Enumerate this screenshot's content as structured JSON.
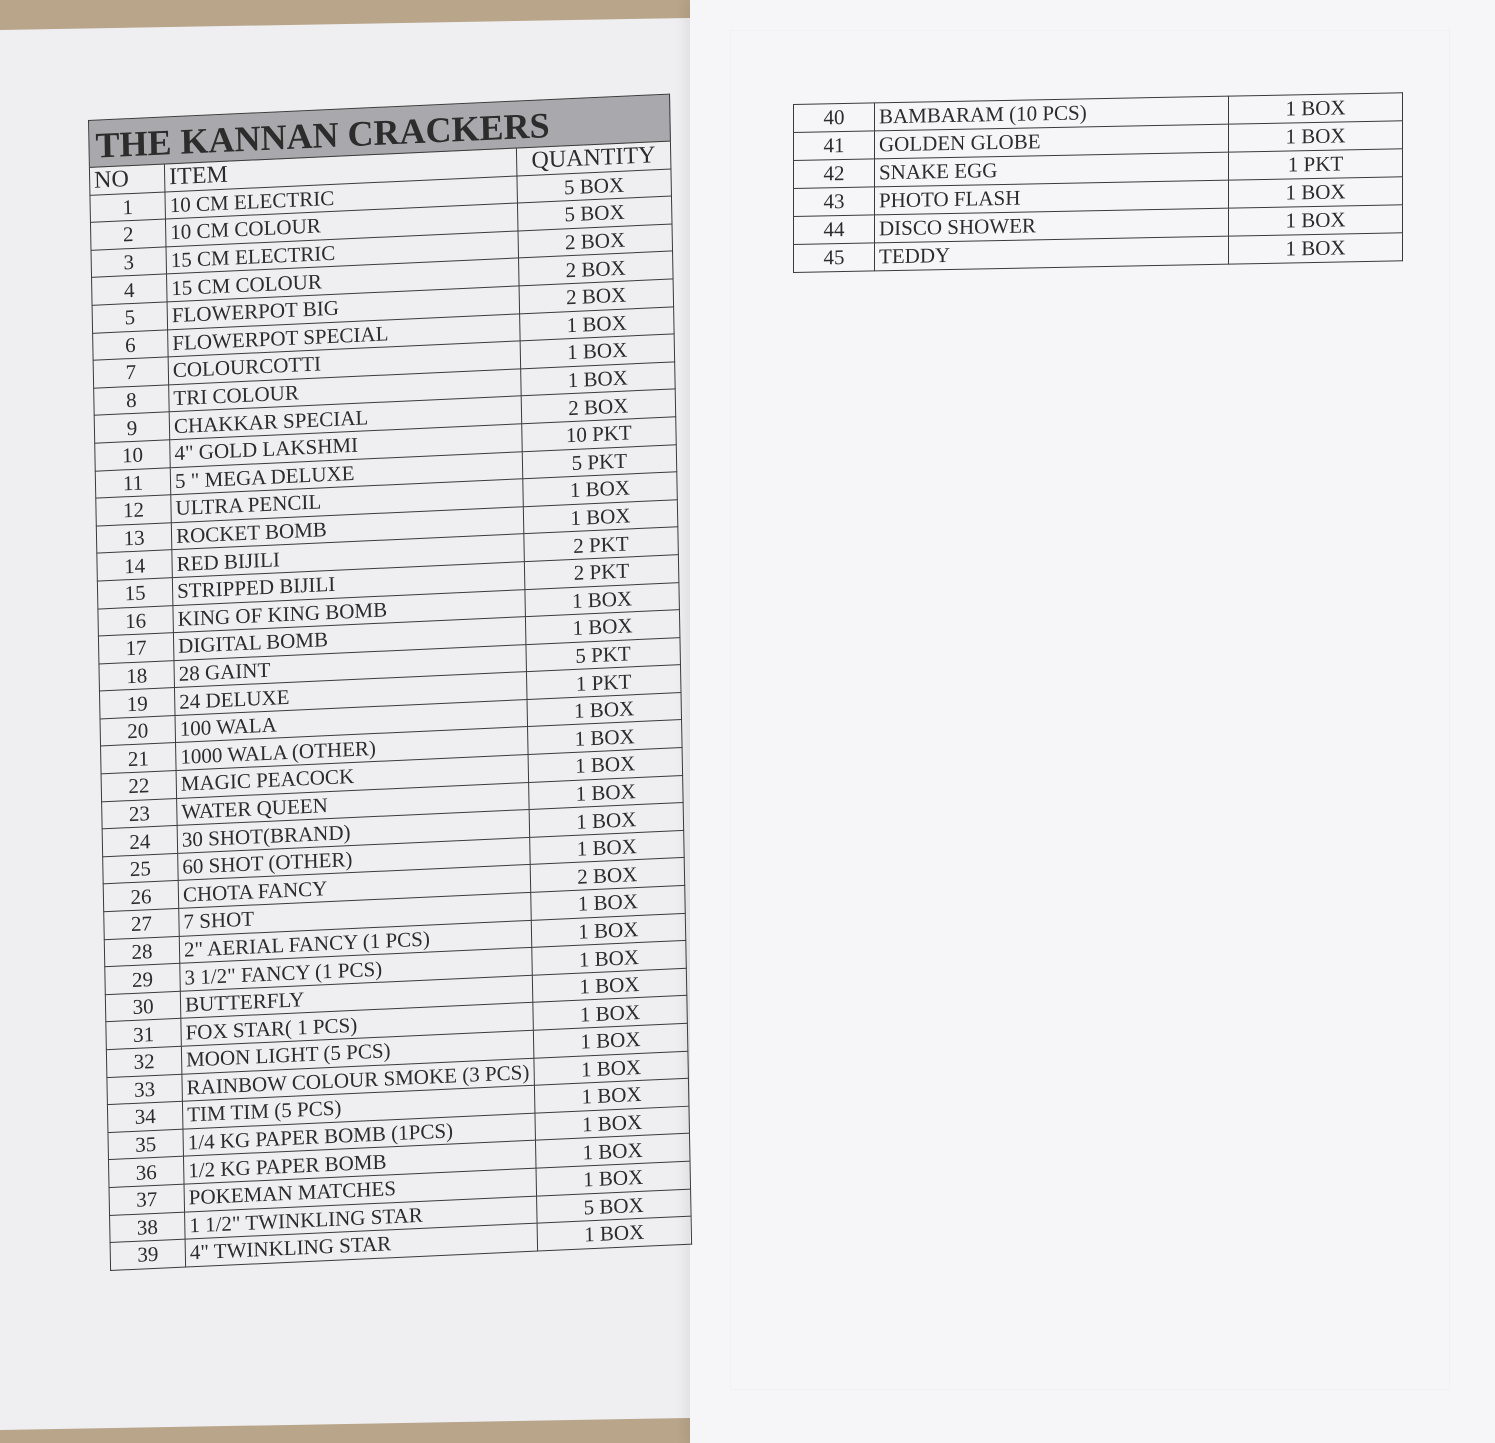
{
  "title": "THE KANNAN CRACKERS",
  "columns": {
    "no": "NO",
    "item": "ITEM",
    "quantity": "QUANTITY"
  },
  "rows": [
    {
      "no": "1",
      "item": "10 CM ELECTRIC",
      "qty": "5 BOX"
    },
    {
      "no": "2",
      "item": "10 CM COLOUR",
      "qty": "5 BOX"
    },
    {
      "no": "3",
      "item": "15 CM ELECTRIC",
      "qty": "2 BOX"
    },
    {
      "no": "4",
      "item": "15 CM COLOUR",
      "qty": "2 BOX"
    },
    {
      "no": "5",
      "item": "FLOWERPOT BIG",
      "qty": "2 BOX"
    },
    {
      "no": "6",
      "item": "FLOWERPOT SPECIAL",
      "qty": "1 BOX"
    },
    {
      "no": "7",
      "item": "COLOURCOTTI",
      "qty": "1 BOX"
    },
    {
      "no": "8",
      "item": "TRI COLOUR",
      "qty": "1 BOX"
    },
    {
      "no": "9",
      "item": "CHAKKAR SPECIAL",
      "qty": "2 BOX"
    },
    {
      "no": "10",
      "item": "4\" GOLD LAKSHMI",
      "qty": "10 PKT"
    },
    {
      "no": "11",
      "item": "5 \" MEGA DELUXE",
      "qty": "5 PKT"
    },
    {
      "no": "12",
      "item": "ULTRA PENCIL",
      "qty": "1 BOX"
    },
    {
      "no": "13",
      "item": "ROCKET BOMB",
      "qty": "1 BOX"
    },
    {
      "no": "14",
      "item": "RED BIJILI",
      "qty": "2 PKT"
    },
    {
      "no": "15",
      "item": "STRIPPED BIJILI",
      "qty": "2 PKT"
    },
    {
      "no": "16",
      "item": "KING OF KING BOMB",
      "qty": "1 BOX"
    },
    {
      "no": "17",
      "item": "DIGITAL BOMB",
      "qty": "1 BOX"
    },
    {
      "no": "18",
      "item": "28 GAINT",
      "qty": "5 PKT"
    },
    {
      "no": "19",
      "item": "24 DELUXE",
      "qty": "1 PKT"
    },
    {
      "no": "20",
      "item": "100 WALA",
      "qty": "1 BOX"
    },
    {
      "no": "21",
      "item": "1000 WALA (OTHER)",
      "qty": "1 BOX"
    },
    {
      "no": "22",
      "item": "MAGIC PEACOCK",
      "qty": "1 BOX"
    },
    {
      "no": "23",
      "item": "WATER QUEEN",
      "qty": "1 BOX"
    },
    {
      "no": "24",
      "item": "30 SHOT(BRAND)",
      "qty": "1 BOX"
    },
    {
      "no": "25",
      "item": "60 SHOT (OTHER)",
      "qty": "1 BOX"
    },
    {
      "no": "26",
      "item": "CHOTA FANCY",
      "qty": "2 BOX"
    },
    {
      "no": "27",
      "item": "7 SHOT",
      "qty": "1 BOX"
    },
    {
      "no": "28",
      "item": "2\" AERIAL FANCY (1 PCS)",
      "qty": "1 BOX"
    },
    {
      "no": "29",
      "item": "3 1/2\" FANCY (1 PCS)",
      "qty": "1 BOX"
    },
    {
      "no": "30",
      "item": "BUTTERFLY",
      "qty": "1 BOX"
    },
    {
      "no": "31",
      "item": "FOX STAR( 1 PCS)",
      "qty": "1 BOX"
    },
    {
      "no": "32",
      "item": "MOON LIGHT (5 PCS)",
      "qty": "1 BOX"
    },
    {
      "no": "33",
      "item": "RAINBOW COLOUR SMOKE (3 PCS)",
      "qty": "1 BOX"
    },
    {
      "no": "34",
      "item": "TIM TIM (5 PCS)",
      "qty": "1 BOX"
    },
    {
      "no": "35",
      "item": "1/4 KG PAPER BOMB (1PCS)",
      "qty": "1 BOX"
    },
    {
      "no": "36",
      "item": "1/2 KG PAPER BOMB",
      "qty": "1 BOX"
    },
    {
      "no": "37",
      "item": "POKEMAN MATCHES",
      "qty": "1 BOX"
    },
    {
      "no": "38",
      "item": "1 1/2\" TWINKLING STAR",
      "qty": "5 BOX"
    },
    {
      "no": "39",
      "item": "4\" TWINKLING STAR",
      "qty": "1 BOX"
    }
  ],
  "rows_continued": [
    {
      "no": "40",
      "item": "BAMBARAM (10 PCS)",
      "qty": "1 BOX"
    },
    {
      "no": "41",
      "item": "GOLDEN GLOBE",
      "qty": "1 BOX"
    },
    {
      "no": "42",
      "item": "SNAKE EGG",
      "qty": "1 PKT"
    },
    {
      "no": "43",
      "item": "PHOTO FLASH",
      "qty": "1 BOX"
    },
    {
      "no": "44",
      "item": "DISCO SHOWER",
      "qty": "1 BOX"
    },
    {
      "no": "45",
      "item": "TEDDY",
      "qty": "1 BOX"
    }
  ]
}
